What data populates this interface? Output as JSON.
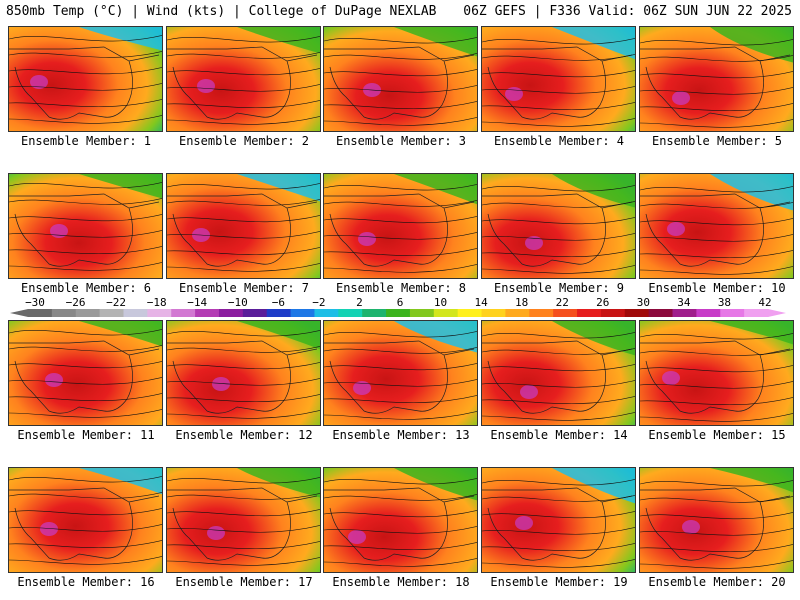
{
  "header": {
    "left_title": "850mb Temp (°C) | Wind (kts) | College of DuPage NEXLAB",
    "right_title": "06Z GEFS | F336 Valid: 06Z SUN JUN 22 2025"
  },
  "colorbar": {
    "tick_labels": [
      "−30",
      "−26",
      "−22",
      "−18",
      "−14",
      "−10",
      "−6",
      "−2",
      "2",
      "6",
      "10",
      "14",
      "18",
      "22",
      "26",
      "30",
      "34",
      "38",
      "42"
    ],
    "colors": [
      "#6a6a6a",
      "#888888",
      "#9a9a9a",
      "#b4b4b4",
      "#c8c8dc",
      "#e6b4e6",
      "#d278d2",
      "#b43cb4",
      "#8c1ea0",
      "#5a1e9a",
      "#1e3cc8",
      "#1e78e6",
      "#1ebee6",
      "#14d2b4",
      "#1eb46e",
      "#3cb41e",
      "#82c81e",
      "#d2e61e",
      "#fff01e",
      "#ffd21e",
      "#ffaa1e",
      "#ff821e",
      "#f5501e",
      "#e61e1e",
      "#c81414",
      "#a00a0a",
      "#8c0a3c",
      "#a01e8c",
      "#c83cc8",
      "#e678e6",
      "#f0a0f0"
    ]
  },
  "members": [
    {
      "label": "Ensemble Member: 1"
    },
    {
      "label": "Ensemble Member: 2"
    },
    {
      "label": "Ensemble Member: 3"
    },
    {
      "label": "Ensemble Member: 4"
    },
    {
      "label": "Ensemble Member: 5"
    },
    {
      "label": "Ensemble Member: 6"
    },
    {
      "label": "Ensemble Member: 7"
    },
    {
      "label": "Ensemble Member: 8"
    },
    {
      "label": "Ensemble Member: 9"
    },
    {
      "label": "Ensemble Member: 10"
    },
    {
      "label": "Ensemble Member: 11"
    },
    {
      "label": "Ensemble Member: 12"
    },
    {
      "label": "Ensemble Member: 13"
    },
    {
      "label": "Ensemble Member: 14"
    },
    {
      "label": "Ensemble Member: 15"
    },
    {
      "label": "Ensemble Member: 16"
    },
    {
      "label": "Ensemble Member: 17"
    },
    {
      "label": "Ensemble Member: 18"
    },
    {
      "label": "Ensemble Member: 19"
    },
    {
      "label": "Ensemble Member: 20"
    }
  ]
}
